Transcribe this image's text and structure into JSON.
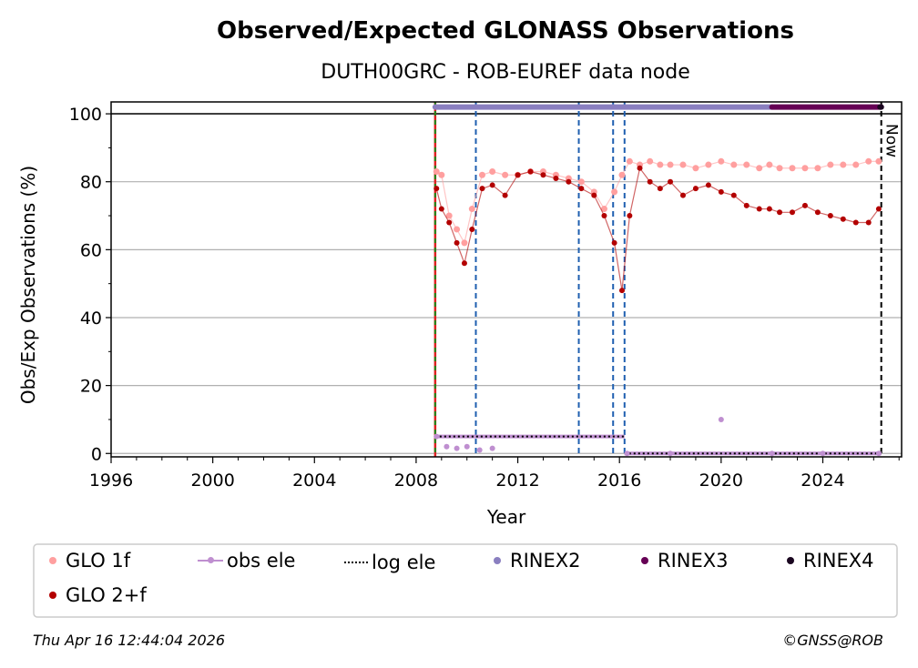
{
  "chart_data": {
    "type": "scatter",
    "title": "Observed/Expected GLONASS Observations",
    "subtitle": "DUTH00GRC - ROB-EUREF data node",
    "xlabel": "Year",
    "ylabel": "Obs/Exp Observations (%)",
    "xlim": [
      1996,
      2027.1
    ],
    "ylim": [
      -1,
      103.5
    ],
    "x_ticks": [
      1996,
      2000,
      2004,
      2008,
      2012,
      2016,
      2020,
      2024
    ],
    "y_ticks": [
      0,
      20,
      40,
      60,
      80,
      100
    ],
    "grid": "horizontal",
    "now_label": "Now",
    "now_x": 2026.3,
    "start_x": 2008.75,
    "event_lines": [
      2010.35,
      2014.4,
      2015.75,
      2016.2
    ],
    "series": [
      {
        "name": "GLO 1f",
        "color": "#ff9f9f",
        "x": [
          2008.8,
          2009.0,
          2009.3,
          2009.6,
          2009.9,
          2010.2,
          2010.6,
          2011.0,
          2011.5,
          2012.0,
          2012.5,
          2013.0,
          2013.5,
          2014.0,
          2014.5,
          2015.0,
          2015.4,
          2015.8,
          2016.1,
          2016.4,
          2016.8,
          2017.2,
          2017.6,
          2018.0,
          2018.5,
          2019.0,
          2019.5,
          2020.0,
          2020.5,
          2021.0,
          2021.5,
          2021.9,
          2022.3,
          2022.8,
          2023.3,
          2023.8,
          2024.3,
          2024.8,
          2025.3,
          2025.8,
          2026.2
        ],
        "values": [
          83,
          82,
          70,
          66,
          62,
          72,
          82,
          83,
          82,
          82,
          83,
          83,
          82,
          81,
          80,
          77,
          72,
          77,
          82,
          86,
          85,
          86,
          85,
          85,
          85,
          84,
          85,
          86,
          85,
          85,
          84,
          85,
          84,
          84,
          84,
          84,
          85,
          85,
          85,
          86,
          86
        ]
      },
      {
        "name": "GLO 2+f",
        "color": "#b30000",
        "x": [
          2008.8,
          2009.0,
          2009.3,
          2009.6,
          2009.9,
          2010.2,
          2010.6,
          2011.0,
          2011.5,
          2012.0,
          2012.5,
          2013.0,
          2013.5,
          2014.0,
          2014.5,
          2015.0,
          2015.4,
          2015.8,
          2016.1,
          2016.4,
          2016.8,
          2017.2,
          2017.6,
          2018.0,
          2018.5,
          2019.0,
          2019.5,
          2020.0,
          2020.5,
          2021.0,
          2021.5,
          2021.9,
          2022.3,
          2022.8,
          2023.3,
          2023.8,
          2024.3,
          2024.8,
          2025.3,
          2025.8,
          2026.2
        ],
        "values": [
          78,
          72,
          68,
          62,
          56,
          66,
          78,
          79,
          76,
          82,
          83,
          82,
          81,
          80,
          78,
          76,
          70,
          62,
          48,
          70,
          84,
          80,
          78,
          80,
          76,
          78,
          79,
          77,
          76,
          73,
          72,
          72,
          71,
          71,
          73,
          71,
          70,
          69,
          68,
          68,
          72
        ]
      },
      {
        "name": "obs ele",
        "color": "#bf8fd0",
        "x": [
          2008.8,
          2009.2,
          2009.6,
          2010.0,
          2010.5,
          2011.0,
          2016.3,
          2018.0,
          2020.0,
          2022.0,
          2024.0,
          2026.2
        ],
        "values": [
          5,
          2,
          1.5,
          2,
          1,
          1.5,
          0,
          0,
          10,
          0,
          0,
          0
        ]
      },
      {
        "name": "log ele",
        "color": "#000000",
        "segments": [
          {
            "x0": 2008.75,
            "x1": 2016.2,
            "value": 5
          },
          {
            "x0": 2016.2,
            "x1": 2026.3,
            "value": 0
          }
        ]
      },
      {
        "name": "RINEX2",
        "color": "#8a7fc0",
        "x0": 2008.75,
        "x1": 2022.0,
        "value": 102
      },
      {
        "name": "RINEX3",
        "color": "#660055",
        "x0": 2022.0,
        "x1": 2026.3,
        "value": 102
      },
      {
        "name": "RINEX4",
        "color": "#1a0620",
        "x0": 2026.25,
        "x1": 2026.3,
        "value": 102
      }
    ]
  },
  "legend": [
    {
      "label": "GLO 1f",
      "symbol": "dot",
      "color": "#ff9f9f"
    },
    {
      "label": "obs ele",
      "symbol": "line-dot",
      "color": "#bf8fd0"
    },
    {
      "label": "log ele",
      "symbol": "dotted-line",
      "color": "#000000"
    },
    {
      "label": "RINEX2",
      "symbol": "dot",
      "color": "#8a7fc0"
    },
    {
      "label": "RINEX3",
      "symbol": "dot",
      "color": "#660055"
    },
    {
      "label": "RINEX4",
      "symbol": "dot",
      "color": "#1a0620"
    },
    {
      "label": "GLO 2+f",
      "symbol": "dot",
      "color": "#b30000"
    }
  ],
  "footer": {
    "timestamp": "Thu Apr 16 12:44:04 2026",
    "credit": "©GNSS@ROB"
  }
}
